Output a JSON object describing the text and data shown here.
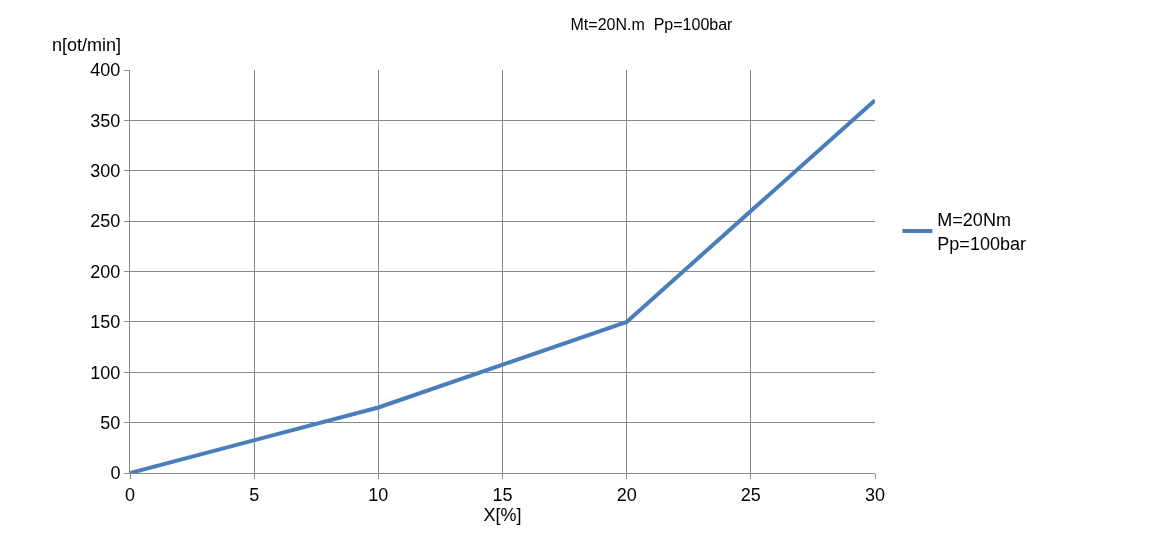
{
  "chart_data": {
    "type": "line",
    "title": "Mt=20N.m  Pp=100bar",
    "xlabel": "X[%]",
    "ylabel": "n[ot/min]",
    "x": [
      0,
      10,
      20,
      30
    ],
    "series": [
      {
        "name": "M=20Nm\nPp=100bar",
        "color": "#4a7ebb",
        "values": [
          0,
          65,
          150,
          370
        ]
      }
    ],
    "xlim": [
      0,
      30
    ],
    "xticks": [
      0,
      5,
      10,
      15,
      20,
      25,
      30
    ],
    "ylim": [
      0,
      400
    ],
    "yticks": [
      0,
      50,
      100,
      150,
      200,
      250,
      300,
      350,
      400
    ],
    "grid": true,
    "legend": "right",
    "marker": "none",
    "line_style": "solid"
  }
}
